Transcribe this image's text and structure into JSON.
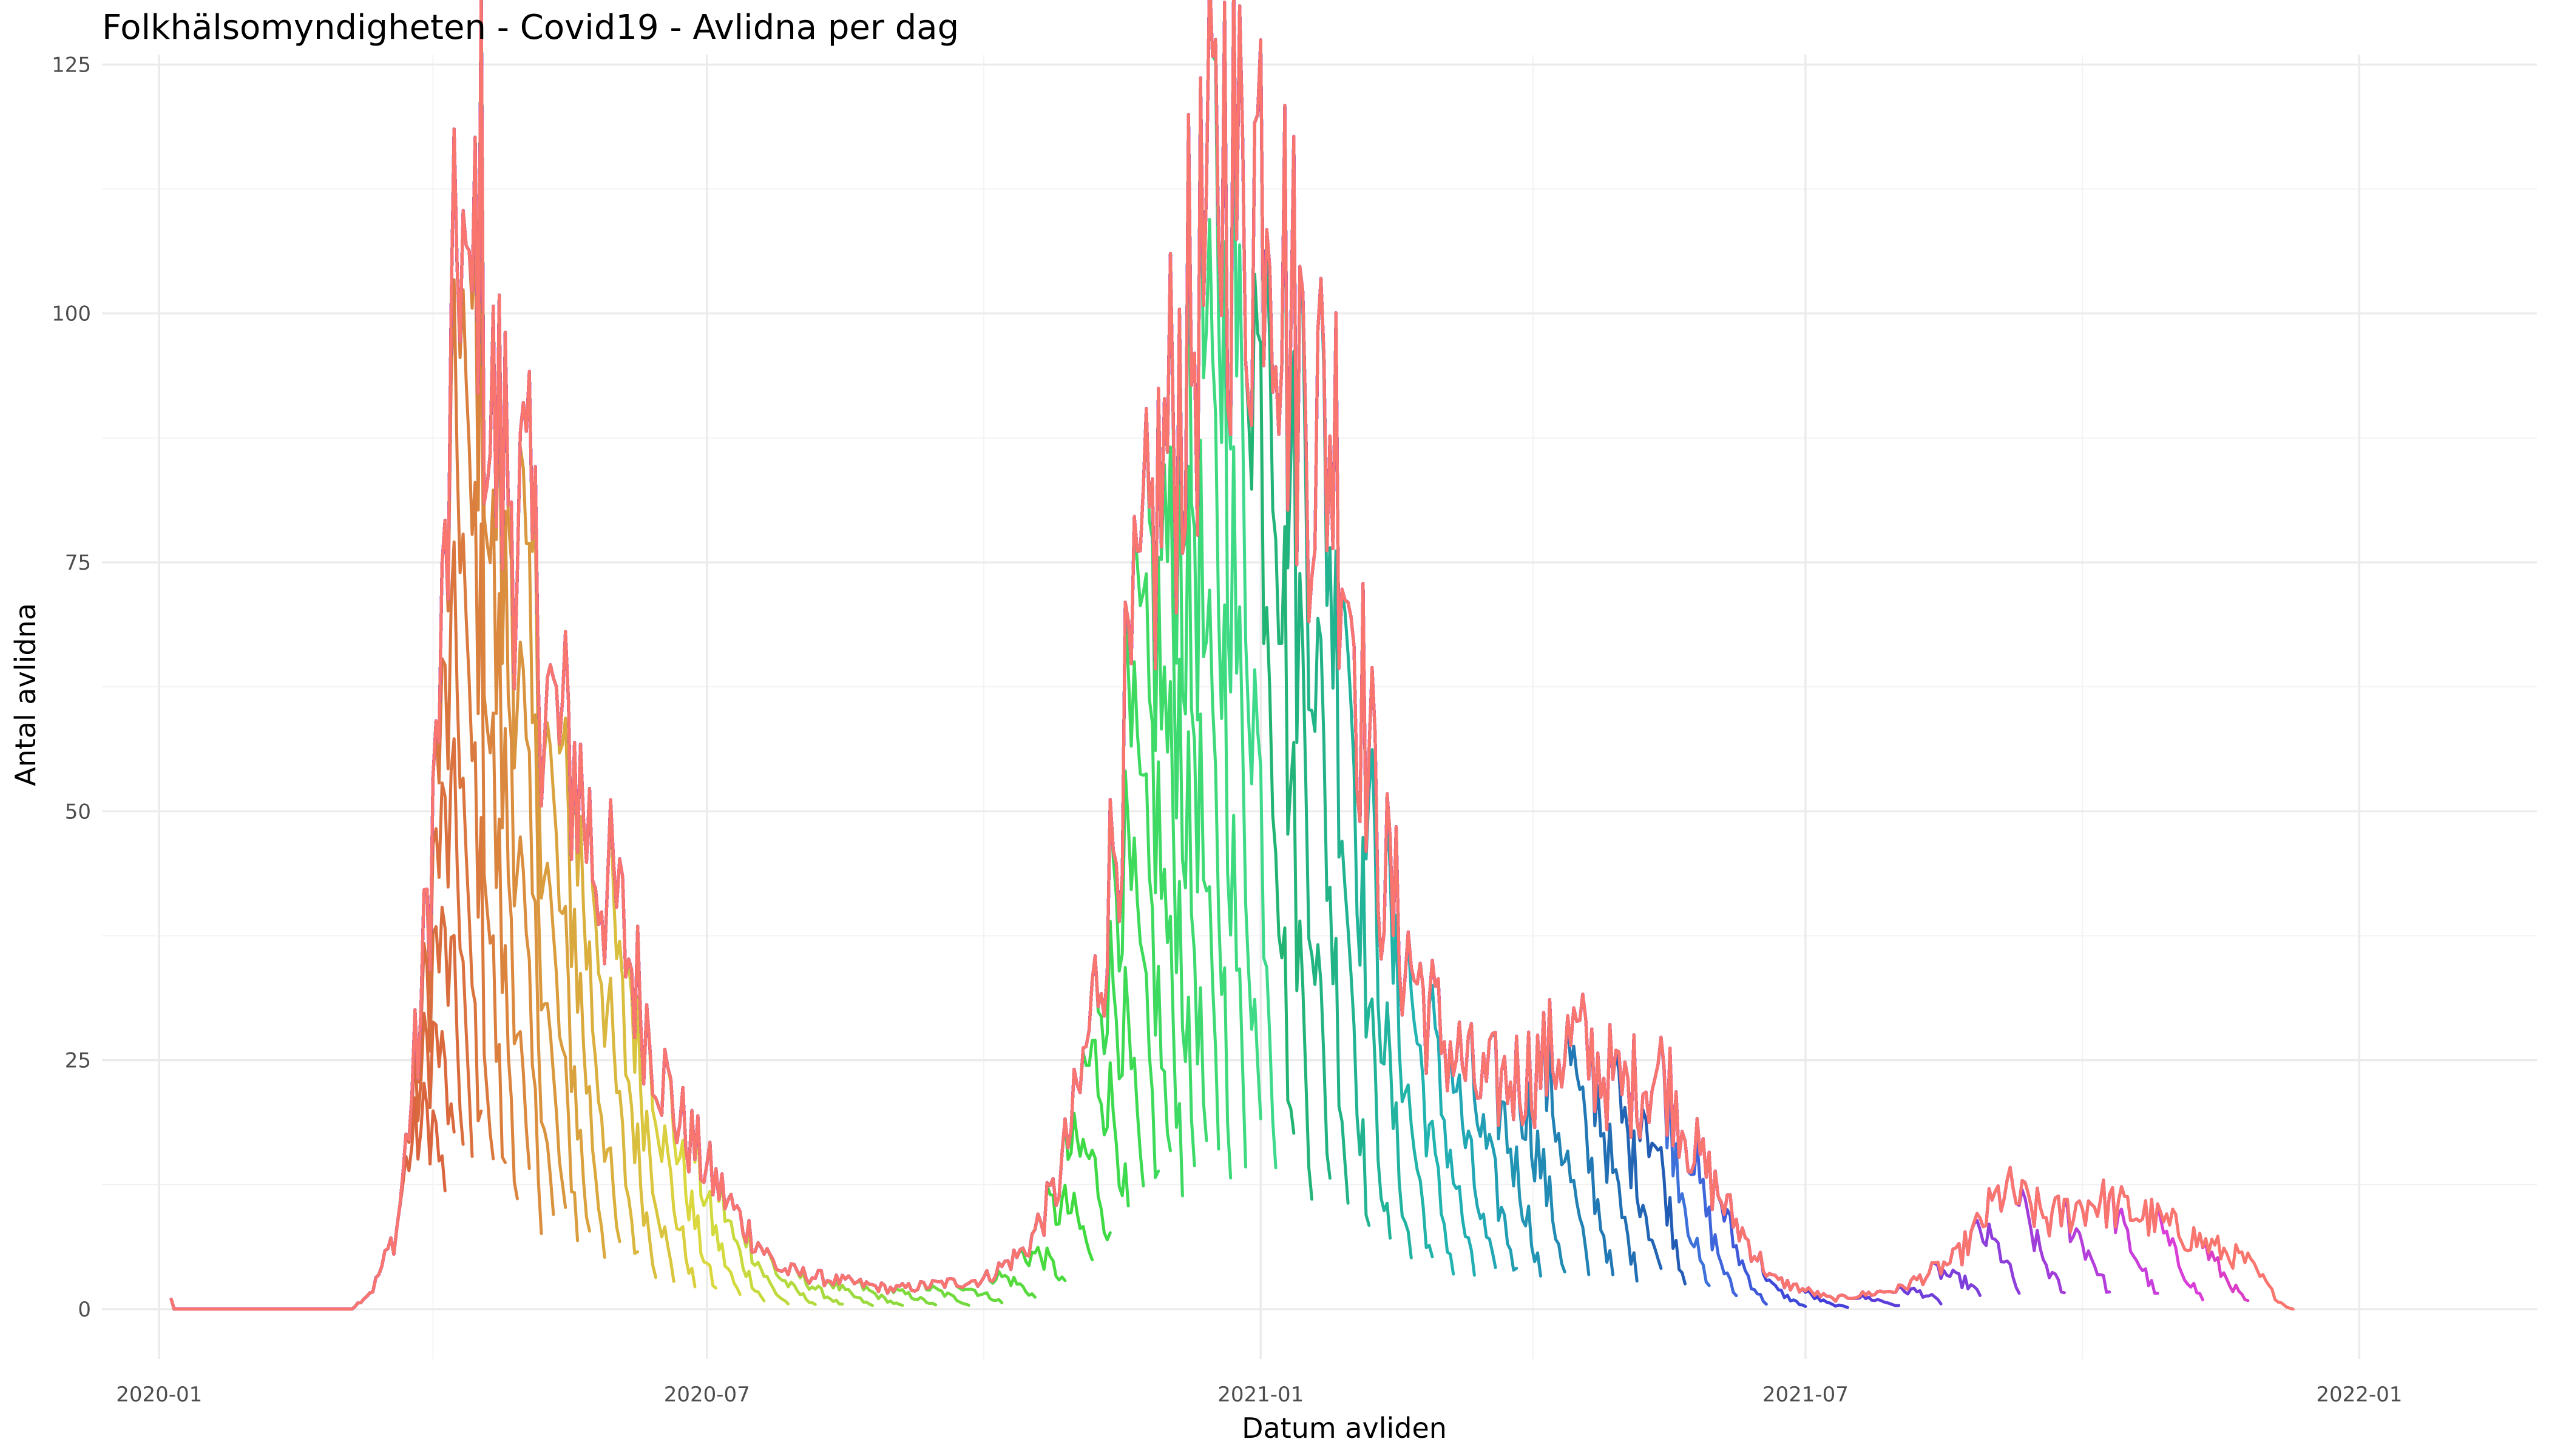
{
  "chart_data": {
    "type": "line",
    "title": "Folkhälsomyndigheten - Covid19 - Avlidna per dag",
    "xlabel": "Datum avliden",
    "ylabel": "Antal avlidna",
    "x_ticks": [
      "2020-01",
      "2020-07",
      "2021-01",
      "2021-07",
      "2022-01"
    ],
    "y_ticks": [
      "0",
      "25",
      "50",
      "75",
      "100",
      "125"
    ],
    "xlim": [
      "2019-12-13",
      "2022-03-01"
    ],
    "ylim": [
      -5,
      126
    ],
    "grid": true,
    "legend": "none",
    "series_description": "Many overlapping daily-death series, one per report date; each series is colored by its report date and runs from 2020-01 up to that report date.",
    "baseline_shape": [
      [
        "2020-01-05",
        1
      ],
      [
        "2020-01-06",
        0
      ],
      [
        "2020-03-05",
        0
      ],
      [
        "2020-03-12",
        2
      ],
      [
        "2020-03-20",
        8
      ],
      [
        "2020-03-28",
        30
      ],
      [
        "2020-04-04",
        65
      ],
      [
        "2020-04-08",
        95
      ],
      [
        "2020-04-10",
        115
      ],
      [
        "2020-04-13",
        90
      ],
      [
        "2020-04-16",
        116
      ],
      [
        "2020-04-20",
        88
      ],
      [
        "2020-04-27",
        84
      ],
      [
        "2020-05-04",
        74
      ],
      [
        "2020-05-11",
        58
      ],
      [
        "2020-05-18",
        55
      ],
      [
        "2020-05-25",
        45
      ],
      [
        "2020-06-01",
        40
      ],
      [
        "2020-06-10",
        30
      ],
      [
        "2020-06-20",
        20
      ],
      [
        "2020-07-01",
        14
      ],
      [
        "2020-07-12",
        9
      ],
      [
        "2020-07-25",
        4
      ],
      [
        "2020-08-10",
        3
      ],
      [
        "2020-09-01",
        2
      ],
      [
        "2020-10-01",
        3
      ],
      [
        "2020-10-15",
        6
      ],
      [
        "2020-10-25",
        12
      ],
      [
        "2020-11-02",
        22
      ],
      [
        "2020-11-10",
        38
      ],
      [
        "2020-11-18",
        60
      ],
      [
        "2020-11-25",
        75
      ],
      [
        "2020-12-03",
        90
      ],
      [
        "2020-12-11",
        100
      ],
      [
        "2020-12-20",
        118
      ],
      [
        "2020-12-27",
        108
      ],
      [
        "2021-01-03",
        122
      ],
      [
        "2021-01-10",
        100
      ],
      [
        "2021-01-18",
        90
      ],
      [
        "2021-01-26",
        88
      ],
      [
        "2021-02-02",
        66
      ],
      [
        "2021-02-10",
        45
      ],
      [
        "2021-02-18",
        36
      ],
      [
        "2021-03-01",
        28
      ],
      [
        "2021-03-15",
        22
      ],
      [
        "2021-04-01",
        24
      ],
      [
        "2021-04-15",
        27
      ],
      [
        "2021-05-01",
        22
      ],
      [
        "2021-05-15",
        24
      ],
      [
        "2021-05-25",
        16
      ],
      [
        "2021-06-05",
        10
      ],
      [
        "2021-06-20",
        3
      ],
      [
        "2021-07-10",
        1
      ],
      [
        "2021-08-01",
        2
      ],
      [
        "2021-08-20",
        5
      ],
      [
        "2021-09-05",
        12
      ],
      [
        "2021-09-20",
        9
      ],
      [
        "2021-10-05",
        11
      ],
      [
        "2021-10-25",
        9
      ],
      [
        "2021-11-15",
        6
      ],
      [
        "2021-12-01",
        4
      ],
      [
        "2021-12-10",
        0
      ]
    ],
    "report_dates": [
      "2020-04-05",
      "2020-04-08",
      "2020-04-11",
      "2020-04-14",
      "2020-04-17",
      "2020-04-21",
      "2020-04-25",
      "2020-04-29",
      "2020-05-03",
      "2020-05-07",
      "2020-05-11",
      "2020-05-15",
      "2020-05-19",
      "2020-05-23",
      "2020-05-28",
      "2020-06-02",
      "2020-06-08",
      "2020-06-14",
      "2020-06-20",
      "2020-06-27",
      "2020-07-04",
      "2020-07-12",
      "2020-07-20",
      "2020-07-28",
      "2020-08-06",
      "2020-08-15",
      "2020-08-25",
      "2020-09-04",
      "2020-09-15",
      "2020-09-26",
      "2020-10-07",
      "2020-10-18",
      "2020-10-28",
      "2020-11-06",
      "2020-11-12",
      "2020-11-18",
      "2020-11-23",
      "2020-11-28",
      "2020-12-02",
      "2020-12-06",
      "2020-12-10",
      "2020-12-14",
      "2020-12-18",
      "2020-12-22",
      "2020-12-27",
      "2021-01-01",
      "2021-01-06",
      "2021-01-12",
      "2021-01-18",
      "2021-01-24",
      "2021-01-30",
      "2021-02-06",
      "2021-02-13",
      "2021-02-20",
      "2021-02-27",
      "2021-03-06",
      "2021-03-13",
      "2021-03-20",
      "2021-03-27",
      "2021-04-04",
      "2021-04-12",
      "2021-04-20",
      "2021-04-28",
      "2021-05-06",
      "2021-05-14",
      "2021-05-22",
      "2021-05-30",
      "2021-06-08",
      "2021-06-18",
      "2021-07-01",
      "2021-07-15",
      "2021-08-01",
      "2021-08-15",
      "2021-08-28",
      "2021-09-10",
      "2021-09-25",
      "2021-10-10",
      "2021-10-26",
      "2021-11-10",
      "2021-11-25",
      "2021-12-10"
    ]
  }
}
